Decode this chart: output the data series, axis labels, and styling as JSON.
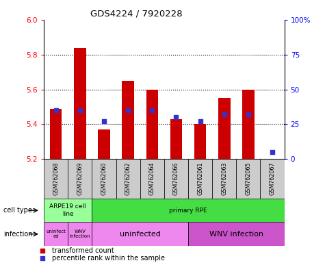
{
  "title": "GDS4224 / 7920228",
  "samples": [
    "GSM762068",
    "GSM762069",
    "GSM762060",
    "GSM762062",
    "GSM762064",
    "GSM762066",
    "GSM762061",
    "GSM762063",
    "GSM762065",
    "GSM762067"
  ],
  "bar_values": [
    5.49,
    5.84,
    5.37,
    5.65,
    5.6,
    5.43,
    5.4,
    5.55,
    5.6,
    5.2
  ],
  "bar_base": 5.2,
  "percentile_values": [
    35,
    35,
    27,
    35,
    35,
    30,
    27,
    32,
    32,
    5
  ],
  "ylim": [
    5.2,
    6.0
  ],
  "yticks": [
    5.2,
    5.4,
    5.6,
    5.8,
    6.0
  ],
  "y2lim": [
    0,
    100
  ],
  "y2ticks": [
    0,
    25,
    50,
    75,
    100
  ],
  "y2ticklabels": [
    "0",
    "25",
    "50",
    "75",
    "100%"
  ],
  "bar_color": "#cc0000",
  "dot_color": "#3333cc",
  "cell_type_row": [
    {
      "label": "ARPE19 cell\nline",
      "start": 0,
      "end": 2,
      "color": "#99ff99"
    },
    {
      "label": "primary RPE",
      "start": 2,
      "end": 10,
      "color": "#44dd44"
    }
  ],
  "infection_row": [
    {
      "label": "uninfect\ned",
      "start": 0,
      "end": 1,
      "color": "#ee88ee",
      "fontsize": 5
    },
    {
      "label": "WNV\ninfection",
      "start": 1,
      "end": 2,
      "color": "#ee88ee",
      "fontsize": 5
    },
    {
      "label": "uninfected",
      "start": 2,
      "end": 6,
      "color": "#ee88ee",
      "fontsize": 8
    },
    {
      "label": "WNV infection",
      "start": 6,
      "end": 10,
      "color": "#cc55cc",
      "fontsize": 8
    }
  ],
  "cell_row_label": "cell type",
  "infection_row_label": "infection",
  "legend_items": [
    "transformed count",
    "percentile rank within the sample"
  ],
  "legend_colors": [
    "#cc0000",
    "#3333cc"
  ],
  "bg_color": "#ffffff",
  "sample_bg": "#cccccc"
}
